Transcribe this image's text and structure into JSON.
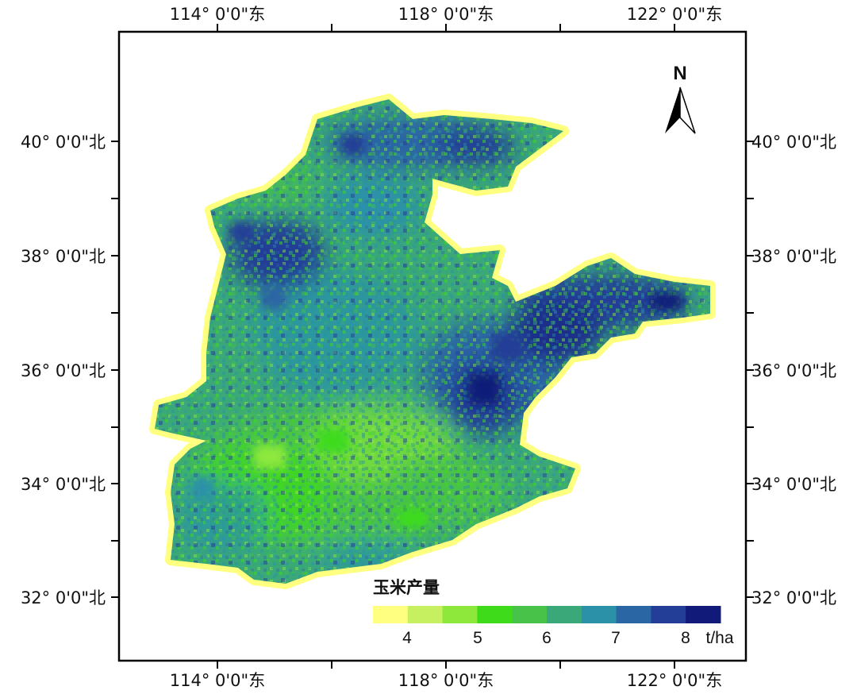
{
  "map": {
    "lon_labels": [
      "114° 0'0\"东",
      "118° 0'0\"东",
      "122° 0'0\"东"
    ],
    "lat_labels": [
      "40° 0'0\"北",
      "38° 0'0\"北",
      "36° 0'0\"北",
      "34° 0'0\"北",
      "32° 0'0\"北"
    ],
    "north_label": "N"
  },
  "legend": {
    "title": "玉米产量",
    "tick_labels": [
      "4",
      "5",
      "6",
      "7",
      "8"
    ],
    "unit": "t/ha",
    "colors": [
      "#ffff80",
      "#c6f060",
      "#8ee83c",
      "#3edb1a",
      "#48c248",
      "#3aa878",
      "#2a91a8",
      "#2a65a4",
      "#223e96",
      "#111a78"
    ]
  }
}
